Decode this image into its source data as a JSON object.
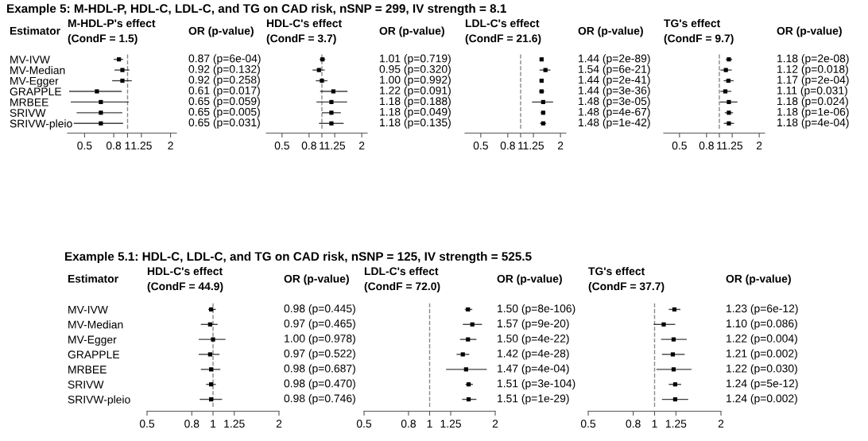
{
  "chart_data": [
    {
      "type": "scatter",
      "orientation": "horizontal",
      "title": "M-HDL-P's effect\n(CondF = 1.5)",
      "annotations": [
        "OR (p-value)",
        "Estimator",
        "Example 5: M-HDL-P, HDL-C, LDL-C, and TG on CAD risk, nSNP = 299, IV strength = 8.1"
      ],
      "categories": [
        "MV-IVW",
        "MV-Median",
        "MV-Egger",
        "GRAPPLE",
        "MRBEE",
        "SRIVW",
        "SRIVW-pleio"
      ],
      "values": [
        0.87,
        0.92,
        0.92,
        0.61,
        0.65,
        0.65,
        0.65
      ],
      "errors": [
        [
          0.8,
          0.93
        ],
        [
          0.81,
          1.03
        ],
        [
          0.78,
          1.07
        ],
        [
          0.39,
          0.91
        ],
        [
          0.4,
          1.02
        ],
        [
          0.44,
          0.92
        ],
        [
          0.42,
          0.93
        ]
      ],
      "value_labels": [
        "0.87 (p=6e-04)",
        "0.92 (p=0.132)",
        "0.92 (p=0.258)",
        "0.61 (p=0.017)",
        "0.65 (p=0.059)",
        "0.65 (p=0.005)",
        "0.65 (p=0.031)"
      ],
      "color": "#000000",
      "marker": "square",
      "log": "x",
      "xlim": [
        0.38,
        2.2
      ],
      "xticks": [
        0.5,
        0.8,
        1,
        1.25,
        2
      ],
      "ref_lines": [
        {
          "axis": "x",
          "value": 1,
          "color": "#888888",
          "line_style": "dashed"
        }
      ]
    },
    {
      "type": "scatter",
      "orientation": "horizontal",
      "title": "HDL-C's effect\n(CondF = 3.7)",
      "annotations": [
        "OR (p-value)"
      ],
      "categories": [
        null,
        null,
        null,
        null,
        null,
        null,
        null
      ],
      "values": [
        1.01,
        0.95,
        1.0,
        1.22,
        1.18,
        1.18,
        1.18
      ],
      "errors": [
        [
          0.96,
          1.06
        ],
        [
          0.85,
          1.05
        ],
        [
          0.9,
          1.1
        ],
        [
          0.97,
          1.56
        ],
        [
          0.91,
          1.55
        ],
        [
          1.0,
          1.39
        ],
        [
          0.95,
          1.46
        ]
      ],
      "value_labels": [
        "1.01 (p=0.719)",
        "0.95 (p=0.320)",
        "1.00 (p=0.992)",
        "1.22 (p=0.091)",
        "1.18 (p=0.188)",
        "1.18 (p=0.049)",
        "1.18 (p=0.135)"
      ],
      "color": "#000000",
      "marker": "square",
      "log": "x",
      "xlim": [
        0.38,
        2.2
      ],
      "xticks": [
        0.5,
        0.8,
        1,
        1.25,
        2
      ],
      "ref_lines": [
        {
          "axis": "x",
          "value": 1,
          "color": "#888888",
          "line_style": "dashed"
        }
      ]
    },
    {
      "type": "scatter",
      "orientation": "horizontal",
      "title": "LDL-C's effect\n(CondF = 21.6)",
      "annotations": [
        "OR (p-value)"
      ],
      "categories": [
        null,
        null,
        null,
        null,
        null,
        null,
        null
      ],
      "values": [
        1.44,
        1.54,
        1.44,
        1.44,
        1.48,
        1.48,
        1.48
      ],
      "errors": [
        [
          1.4,
          1.48
        ],
        [
          1.39,
          1.68
        ],
        [
          1.39,
          1.49
        ],
        [
          1.38,
          1.51
        ],
        [
          1.22,
          1.76
        ],
        [
          1.42,
          1.54
        ],
        [
          1.4,
          1.56
        ]
      ],
      "value_labels": [
        "1.44 (p=2e-89)",
        "1.54 (p=6e-21)",
        "1.44 (p=2e-41)",
        "1.44 (p=3e-36)",
        "1.48 (p=3e-05)",
        "1.48 (p=4e-67)",
        "1.48 (p=1e-42)"
      ],
      "color": "#000000",
      "marker": "square",
      "log": "x",
      "xlim": [
        0.38,
        2.2
      ],
      "xticks": [
        0.5,
        0.8,
        1,
        1.25,
        2
      ],
      "ref_lines": [
        {
          "axis": "x",
          "value": 1,
          "color": "#888888",
          "line_style": "dashed"
        }
      ]
    },
    {
      "type": "scatter",
      "orientation": "horizontal",
      "title": "TG's effect\n(CondF = 9.7)",
      "annotations": [
        "OR (p-value)"
      ],
      "categories": [
        null,
        null,
        null,
        null,
        null,
        null,
        null
      ],
      "values": [
        1.18,
        1.12,
        1.17,
        1.11,
        1.18,
        1.18,
        1.18
      ],
      "errors": [
        [
          1.12,
          1.25
        ],
        [
          1.02,
          1.24
        ],
        [
          1.08,
          1.28
        ],
        [
          1.02,
          1.23
        ],
        [
          1.01,
          1.37
        ],
        [
          1.1,
          1.27
        ],
        [
          1.08,
          1.29
        ]
      ],
      "value_labels": [
        "1.18 (p=2e-08)",
        "1.12 (p=0.018)",
        "1.17 (p=2e-04)",
        "1.11 (p=0.031)",
        "1.18 (p=0.024)",
        "1.18 (p=1e-06)",
        "1.18 (p=4e-04)"
      ],
      "color": "#000000",
      "marker": "square",
      "log": "x",
      "xlim": [
        0.38,
        2.2
      ],
      "xticks": [
        0.5,
        0.8,
        1,
        1.25,
        2
      ],
      "ref_lines": [
        {
          "axis": "x",
          "value": 1,
          "color": "#888888",
          "line_style": "dashed"
        }
      ]
    },
    {
      "type": "scatter",
      "orientation": "horizontal",
      "title": "HDL-C's effect\n(CondF = 44.9)",
      "annotations": [
        "OR (p-value)",
        "Estimator",
        "Example 5.1: HDL-C, LDL-C, and TG on CAD risk, nSNP = 125, IV strength = 525.5"
      ],
      "categories": [
        "MV-IVW",
        "MV-Median",
        "MV-Egger",
        "GRAPPLE",
        "MRBEE",
        "SRIVW",
        "SRIVW-pleio"
      ],
      "values": [
        0.98,
        0.97,
        1.0,
        0.97,
        0.98,
        0.98,
        0.98
      ],
      "errors": [
        [
          0.95,
          1.03
        ],
        [
          0.88,
          1.05
        ],
        [
          0.86,
          1.14
        ],
        [
          0.86,
          1.07
        ],
        [
          0.88,
          1.08
        ],
        [
          0.93,
          1.03
        ],
        [
          0.87,
          1.1
        ]
      ],
      "value_labels": [
        "0.98 (p=0.445)",
        "0.97 (p=0.465)",
        "1.00 (p=0.978)",
        "0.97 (p=0.522)",
        "0.98 (p=0.687)",
        "0.98 (p=0.470)",
        "0.98 (p=0.746)"
      ],
      "color": "#000000",
      "marker": "square",
      "log": "x",
      "xlim": [
        0.5,
        2
      ],
      "xticks": [
        0.5,
        0.8,
        1,
        1.25,
        2
      ],
      "ref_lines": [
        {
          "axis": "x",
          "value": 1,
          "color": "#888888",
          "line_style": "dashed"
        }
      ]
    },
    {
      "type": "scatter",
      "orientation": "horizontal",
      "title": "LDL-C's effect\n(CondF = 72.0)",
      "annotations": [
        "OR (p-value)"
      ],
      "categories": [
        null,
        null,
        null,
        null,
        null,
        null,
        null
      ],
      "values": [
        1.5,
        1.57,
        1.5,
        1.42,
        1.47,
        1.51,
        1.51
      ],
      "errors": [
        [
          1.45,
          1.57
        ],
        [
          1.42,
          1.74
        ],
        [
          1.38,
          1.64
        ],
        [
          1.33,
          1.52
        ],
        [
          1.19,
          1.83
        ],
        [
          1.46,
          1.58
        ],
        [
          1.41,
          1.64
        ]
      ],
      "value_labels": [
        "1.50 (p=8e-106)",
        "1.57 (p=9e-20)",
        "1.50 (p=4e-22)",
        "1.42 (p=4e-28)",
        "1.47 (p=4e-04)",
        "1.51 (p=3e-104)",
        "1.51 (p=1e-29)"
      ],
      "color": "#000000",
      "marker": "square",
      "log": "x",
      "xlim": [
        0.5,
        2
      ],
      "xticks": [
        0.5,
        0.8,
        1,
        1.25,
        2
      ],
      "ref_lines": [
        {
          "axis": "x",
          "value": 1,
          "color": "#888888",
          "line_style": "dashed"
        }
      ]
    },
    {
      "type": "scatter",
      "orientation": "horizontal",
      "title": "TG's effect\n(CondF = 37.7)",
      "annotations": [
        "OR (p-value)"
      ],
      "categories": [
        null,
        null,
        null,
        null,
        null,
        null,
        null
      ],
      "values": [
        1.23,
        1.1,
        1.22,
        1.21,
        1.22,
        1.24,
        1.24
      ],
      "errors": [
        [
          1.16,
          1.31
        ],
        [
          0.99,
          1.24
        ],
        [
          1.07,
          1.4
        ],
        [
          1.08,
          1.37
        ],
        [
          1.02,
          1.47
        ],
        [
          1.16,
          1.32
        ],
        [
          1.08,
          1.42
        ]
      ],
      "value_labels": [
        "1.23 (p=6e-12)",
        "1.10 (p=0.086)",
        "1.22 (p=0.004)",
        "1.21 (p=0.002)",
        "1.22 (p=0.030)",
        "1.24 (p=5e-12)",
        "1.24 (p=0.002)"
      ],
      "color": "#000000",
      "marker": "square",
      "log": "x",
      "xlim": [
        0.5,
        2
      ],
      "xticks": [
        0.5,
        0.8,
        1,
        1.25,
        2
      ],
      "ref_lines": [
        {
          "axis": "x",
          "value": 1,
          "color": "#888888",
          "line_style": "dashed"
        }
      ]
    }
  ]
}
